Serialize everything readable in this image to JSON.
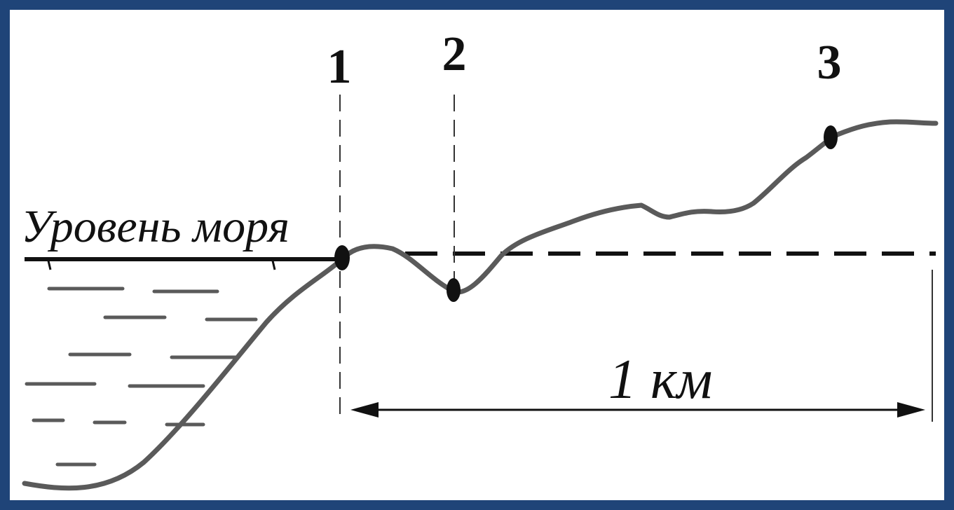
{
  "labels": {
    "point_1": "1",
    "point_2": "2",
    "point_3": "3",
    "sea_level": "Уровень моря",
    "distance": "1 км"
  },
  "colors": {
    "frame": "#1f4478",
    "terrain": "#5a5a5a",
    "ink": "#111111"
  }
}
